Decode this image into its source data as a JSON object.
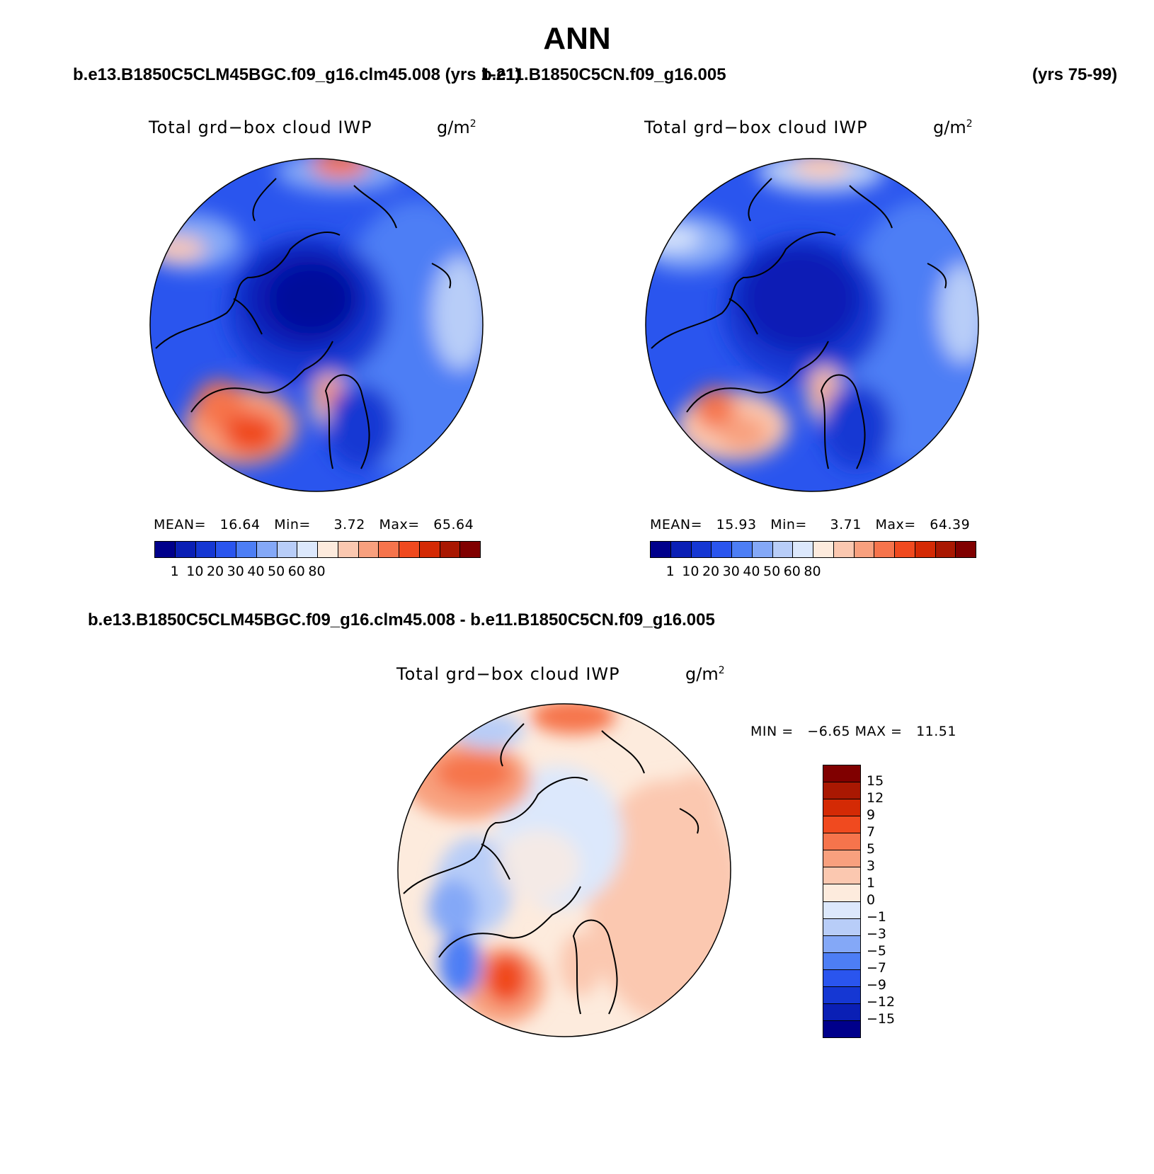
{
  "title": "ANN",
  "header": {
    "case1": "b.e13.B1850C5CLM45BGC.f09_g16.clm45.008 (yrs 1-21)",
    "case2": "b.e11.B1850C5CN.f09_g16.005",
    "case2_years": "(yrs 75-99)"
  },
  "panels": [
    {
      "plot_title": "Total grd−box cloud IWP",
      "units": "g/m",
      "units_sup": "2",
      "stats": {
        "mean_label": "MEAN=",
        "mean": "16.64",
        "min_label": "Min=",
        "min": "3.72",
        "max_label": "Max=",
        "max": "65.64"
      }
    },
    {
      "plot_title": "Total grd−box cloud IWP",
      "units": "g/m",
      "units_sup": "2",
      "stats": {
        "mean_label": "MEAN=",
        "mean": "15.93",
        "min_label": "Min=",
        "min": "3.71",
        "max_label": "Max=",
        "max": "64.39"
      }
    }
  ],
  "colorbar": {
    "colors": [
      "#00008b",
      "#0a1fb5",
      "#1537d3",
      "#2a55ee",
      "#4d7ef5",
      "#84a8f7",
      "#b8cdf8",
      "#dce8fc",
      "#fdebdd",
      "#fbc8b0",
      "#f8a07e",
      "#f6744c",
      "#f04a1f",
      "#d42a05",
      "#a91802",
      "#800000"
    ],
    "tick_labels": [
      "1",
      "10",
      "20",
      "30",
      "40",
      "50",
      "60",
      "80"
    ]
  },
  "diff": {
    "header": "b.e13.B1850C5CLM45BGC.f09_g16.clm45.008 - b.e11.B1850C5CN.f09_g16.005",
    "plot_title": "Total grd−box cloud IWP",
    "units": "g/m",
    "units_sup": "2",
    "stats": {
      "min_label": "MIN =",
      "min": "−6.65",
      "max_label": "MAX =",
      "max": "11.51"
    },
    "colorbar": {
      "colors": [
        "#800000",
        "#a91802",
        "#d42a05",
        "#f04a1f",
        "#f6744c",
        "#f8a07e",
        "#fbc8b0",
        "#fdebdd",
        "#dce8fc",
        "#b8cdf8",
        "#84a8f7",
        "#4d7ef5",
        "#2a55ee",
        "#1537d3",
        "#0a1fb5",
        "#00008b"
      ],
      "tick_labels": [
        "15",
        "12",
        "9",
        "7",
        "5",
        "3",
        "1",
        "0",
        "−1",
        "−3",
        "−5",
        "−7",
        "−9",
        "−12",
        "−15"
      ]
    }
  }
}
